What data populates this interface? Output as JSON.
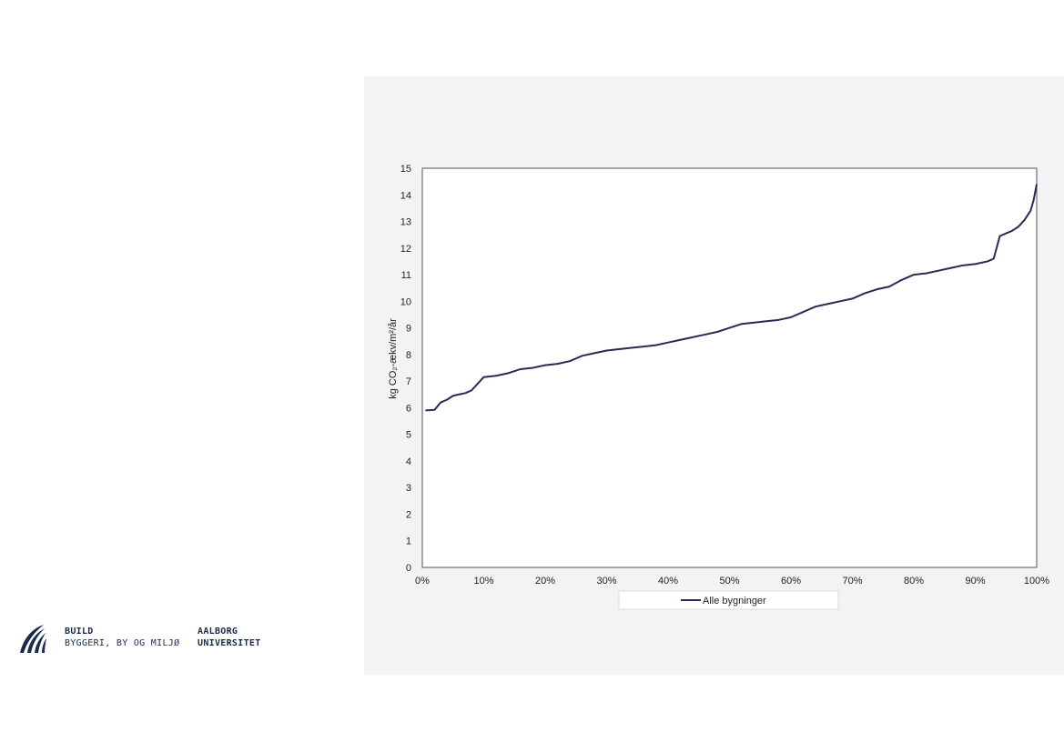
{
  "chart_data": {
    "type": "line",
    "title": "",
    "xlabel": "",
    "ylabel": "kg CO₂-ækv/m²/år",
    "xlim": [
      0,
      100
    ],
    "ylim": [
      0,
      15
    ],
    "x_ticks": [
      "0%",
      "10%",
      "20%",
      "30%",
      "40%",
      "50%",
      "60%",
      "70%",
      "80%",
      "90%",
      "100%"
    ],
    "y_ticks": [
      "0",
      "1",
      "2",
      "3",
      "4",
      "5",
      "6",
      "7",
      "8",
      "9",
      "10",
      "11",
      "12",
      "13",
      "14",
      "15"
    ],
    "grid": false,
    "legend": "bottom",
    "series": [
      {
        "name": "Alle bygninger",
        "color": "#2b2a55",
        "x": [
          0.5,
          2,
          3,
          4,
          5,
          6,
          7,
          8,
          9,
          10,
          12,
          14,
          16,
          18,
          20,
          22,
          24,
          26,
          28,
          30,
          32,
          34,
          36,
          38,
          40,
          42,
          44,
          46,
          48,
          50,
          52,
          54,
          56,
          58,
          60,
          62,
          64,
          66,
          68,
          70,
          72,
          74,
          76,
          78,
          80,
          82,
          84,
          86,
          88,
          90,
          92,
          93,
          94,
          95,
          96,
          97,
          98,
          99,
          99.5,
          100
        ],
        "y": [
          5.9,
          5.92,
          6.2,
          6.3,
          6.45,
          6.5,
          6.55,
          6.65,
          6.9,
          7.15,
          7.2,
          7.3,
          7.45,
          7.5,
          7.6,
          7.65,
          7.75,
          7.95,
          8.05,
          8.15,
          8.2,
          8.25,
          8.3,
          8.35,
          8.45,
          8.55,
          8.65,
          8.75,
          8.85,
          9.0,
          9.15,
          9.2,
          9.25,
          9.3,
          9.4,
          9.6,
          9.8,
          9.9,
          10.0,
          10.1,
          10.3,
          10.45,
          10.55,
          10.8,
          11.0,
          11.05,
          11.15,
          11.25,
          11.35,
          11.4,
          11.5,
          11.6,
          12.45,
          12.55,
          12.65,
          12.8,
          13.05,
          13.4,
          13.8,
          14.4
        ]
      }
    ]
  },
  "logo": {
    "build": "BUILD",
    "build_sub": "BYGGERI, BY OG MILJØ",
    "university_line1": "AALBORG",
    "university_line2": "UNIVERSITET"
  }
}
